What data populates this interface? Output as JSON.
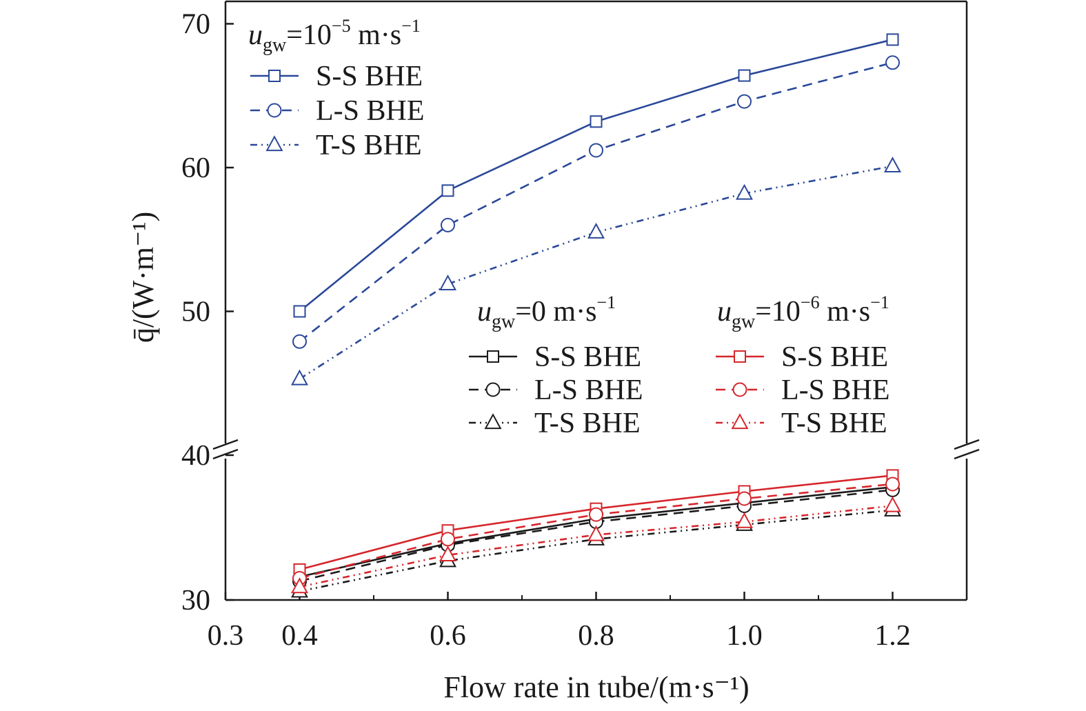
{
  "chart_data": {
    "type": "line",
    "x": [
      0.4,
      0.6,
      0.8,
      1.0,
      1.2
    ],
    "xlabel": "Flow rate in tube/(m·s⁻¹)",
    "ylabel": "q̄/(W·m⁻¹)",
    "xlim": [
      0.3,
      1.3
    ],
    "x_ticks": [
      "0.3",
      "0.4",
      "0.6",
      "0.8",
      "1.0",
      "1.2"
    ],
    "y_broken_axis": true,
    "y_lower_range": [
      30,
      40
    ],
    "y_upper_range": [
      40,
      72
    ],
    "y_ticks": [
      "30",
      "40",
      "50",
      "60",
      "70"
    ],
    "legend_groups": [
      {
        "head_var": "u",
        "head_sub": "gw",
        "head_eq": "=10",
        "head_exp": "−5",
        "head_unit": " m·s",
        "head_unit_exp": "−1",
        "color": "#2a4899",
        "placement": "top-left",
        "series": [
          {
            "name": "S-S BHE",
            "marker": "square",
            "dash": "solid",
            "values": [
              50.0,
              58.4,
              63.2,
              66.4,
              68.9
            ]
          },
          {
            "name": "L-S BHE",
            "marker": "circle",
            "dash": "dashed",
            "values": [
              47.9,
              56.0,
              61.2,
              64.6,
              67.3
            ]
          },
          {
            "name": "T-S BHE",
            "marker": "triangle",
            "dash": "dashdot",
            "values": [
              45.3,
              51.9,
              55.5,
              58.2,
              60.1
            ]
          }
        ]
      },
      {
        "head_var": "u",
        "head_sub": "gw",
        "head_eq": "=0",
        "head_exp": "",
        "head_unit": " m·s",
        "head_unit_exp": "−1",
        "color": "#1a1a1a",
        "placement": "center-right",
        "series": [
          {
            "name": "S-S BHE",
            "marker": "square",
            "dash": "solid",
            "values": [
              31.6,
              33.9,
              35.6,
              36.7,
              37.8
            ]
          },
          {
            "name": "L-S BHE",
            "marker": "circle",
            "dash": "dashed",
            "values": [
              31.3,
              33.8,
              35.4,
              36.5,
              37.6
            ]
          },
          {
            "name": "T-S BHE",
            "marker": "triangle",
            "dash": "dashdot",
            "values": [
              30.6,
              32.7,
              34.2,
              35.2,
              36.2
            ]
          }
        ]
      },
      {
        "head_var": "u",
        "head_sub": "gw",
        "head_eq": "=10",
        "head_exp": "−6",
        "head_unit": " m·s",
        "head_unit_exp": "−1",
        "color": "#d6262c",
        "placement": "right",
        "series": [
          {
            "name": "S-S BHE",
            "marker": "square",
            "dash": "solid",
            "values": [
              32.1,
              34.8,
              36.3,
              37.5,
              38.6
            ]
          },
          {
            "name": "L-S BHE",
            "marker": "circle",
            "dash": "dashed",
            "values": [
              31.5,
              34.2,
              35.9,
              37.0,
              38.0
            ]
          },
          {
            "name": "T-S BHE",
            "marker": "triangle",
            "dash": "dashdot",
            "values": [
              30.9,
              33.1,
              34.5,
              35.4,
              36.5
            ]
          }
        ]
      }
    ]
  }
}
